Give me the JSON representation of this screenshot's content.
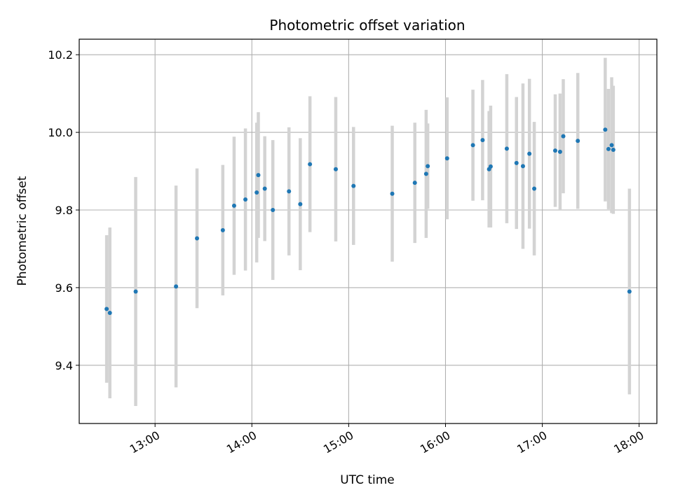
{
  "chart_data": {
    "type": "scatter",
    "title": "Photometric offset variation",
    "xlabel": "UTC time",
    "ylabel": "Photometric offset",
    "xlim": [
      "12:13",
      "18:11"
    ],
    "ylim": [
      9.25,
      10.24
    ],
    "x_ticks": [
      "13:00",
      "14:00",
      "15:00",
      "16:00",
      "17:00",
      "18:00"
    ],
    "y_ticks": [
      9.4,
      9.6,
      9.8,
      10.0,
      10.2
    ],
    "grid": true,
    "colors": {
      "point": "#1f77b4",
      "errorbar": "#d3d3d3",
      "grid": "#b0b0b0"
    },
    "points": [
      {
        "x": "12:30",
        "y": 9.545,
        "err": 0.19
      },
      {
        "x": "12:32",
        "y": 9.535,
        "err": 0.22
      },
      {
        "x": "12:48",
        "y": 9.59,
        "err": 0.295
      },
      {
        "x": "13:13",
        "y": 9.603,
        "err": 0.26
      },
      {
        "x": "13:26",
        "y": 9.727,
        "err": 0.18
      },
      {
        "x": "13:42",
        "y": 9.748,
        "err": 0.168
      },
      {
        "x": "13:49",
        "y": 9.811,
        "err": 0.178
      },
      {
        "x": "13:56",
        "y": 9.827,
        "err": 0.183
      },
      {
        "x": "14:03",
        "y": 9.845,
        "err": 0.18
      },
      {
        "x": "14:04",
        "y": 9.89,
        "err": 0.162
      },
      {
        "x": "14:08",
        "y": 9.855,
        "err": 0.135
      },
      {
        "x": "14:13",
        "y": 9.8,
        "err": 0.18
      },
      {
        "x": "14:23",
        "y": 9.848,
        "err": 0.165
      },
      {
        "x": "14:30",
        "y": 9.815,
        "err": 0.17
      },
      {
        "x": "14:36",
        "y": 9.918,
        "err": 0.175
      },
      {
        "x": "14:52",
        "y": 9.905,
        "err": 0.186
      },
      {
        "x": "15:03",
        "y": 9.862,
        "err": 0.152
      },
      {
        "x": "15:27",
        "y": 9.842,
        "err": 0.175
      },
      {
        "x": "15:41",
        "y": 9.87,
        "err": 0.155
      },
      {
        "x": "15:48",
        "y": 9.893,
        "err": 0.165
      },
      {
        "x": "15:49",
        "y": 9.913,
        "err": 0.11
      },
      {
        "x": "16:01",
        "y": 9.933,
        "err": 0.157
      },
      {
        "x": "16:17",
        "y": 9.967,
        "err": 0.143
      },
      {
        "x": "16:23",
        "y": 9.98,
        "err": 0.155
      },
      {
        "x": "16:27",
        "y": 9.905,
        "err": 0.15
      },
      {
        "x": "16:28",
        "y": 9.912,
        "err": 0.157
      },
      {
        "x": "16:38",
        "y": 9.958,
        "err": 0.192
      },
      {
        "x": "16:44",
        "y": 9.921,
        "err": 0.17
      },
      {
        "x": "16:48",
        "y": 9.913,
        "err": 0.213
      },
      {
        "x": "16:52",
        "y": 9.945,
        "err": 0.193
      },
      {
        "x": "16:55",
        "y": 9.855,
        "err": 0.172
      },
      {
        "x": "17:08",
        "y": 9.953,
        "err": 0.145
      },
      {
        "x": "17:11",
        "y": 9.95,
        "err": 0.15
      },
      {
        "x": "17:13",
        "y": 9.99,
        "err": 0.147
      },
      {
        "x": "17:22",
        "y": 9.978,
        "err": 0.175
      },
      {
        "x": "17:39",
        "y": 10.007,
        "err": 0.185
      },
      {
        "x": "17:41",
        "y": 9.957,
        "err": 0.155
      },
      {
        "x": "17:43",
        "y": 9.967,
        "err": 0.175
      },
      {
        "x": "17:44",
        "y": 9.955,
        "err": 0.165
      },
      {
        "x": "17:54",
        "y": 9.59,
        "err": 0.265
      }
    ]
  }
}
